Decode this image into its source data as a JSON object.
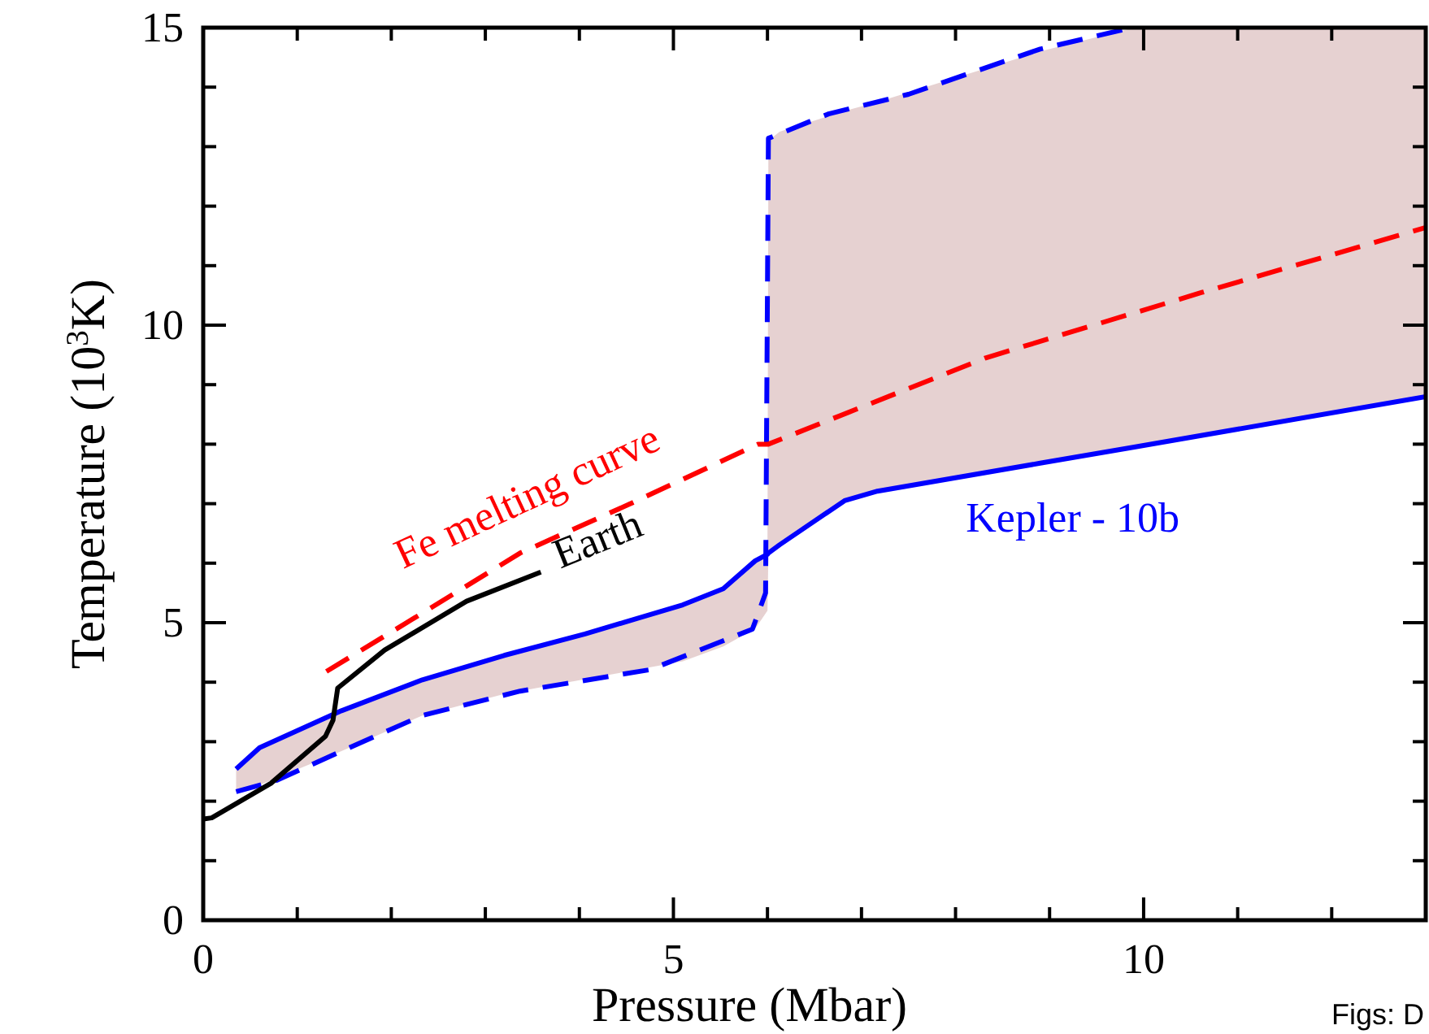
{
  "chart_data": {
    "type": "line",
    "xlabel": "Pressure (Mbar)",
    "ylabel": "Temperature (10$^{3}$K)",
    "xlim": [
      0,
      13
    ],
    "ylim": [
      0,
      15
    ],
    "xticks": [
      0,
      {
        "value": 1,
        "label": null
      },
      {
        "value": 2,
        "label": null
      },
      {
        "value": 3,
        "label": null
      },
      {
        "value": 4,
        "label": null
      },
      5,
      {
        "value": 6,
        "label": null
      },
      {
        "value": 7,
        "label": null
      },
      {
        "value": 8,
        "label": null
      },
      {
        "value": 9,
        "label": null
      },
      10,
      {
        "value": 11,
        "label": null
      },
      {
        "value": 12,
        "label": null
      }
    ],
    "yticks": [
      0,
      {
        "value": 1,
        "label": null
      },
      {
        "value": 2,
        "label": null
      },
      {
        "value": 3,
        "label": null
      },
      {
        "value": 4,
        "label": null
      },
      5,
      {
        "value": 6,
        "label": null
      },
      {
        "value": 7,
        "label": null
      },
      {
        "value": 8,
        "label": null
      },
      {
        "value": 9,
        "label": null
      },
      10,
      {
        "value": 11,
        "label": null
      },
      {
        "value": 12,
        "label": null
      },
      {
        "value": 13,
        "label": null
      },
      {
        "value": 14,
        "label": null
      },
      15
    ],
    "grid": false,
    "legend": false,
    "marker": "none",
    "series": [
      {
        "name": "Kepler - 10b",
        "color": "#0000ff",
        "line_style": "solid",
        "x": [
          0.35,
          0.6,
          1.47,
          2.33,
          3.2,
          4.06,
          5.1,
          5.53,
          5.87,
          6.0,
          6.01,
          6.13,
          6.82,
          7.17,
          8.9,
          9.9,
          13
        ],
        "values": [
          2.54,
          2.9,
          3.52,
          4.04,
          4.45,
          4.81,
          5.3,
          5.57,
          6.04,
          6.15,
          6.17,
          6.31,
          7.05,
          7.21,
          7.68,
          7.95,
          8.8
        ],
        "lower": [
          2.16,
          2.27,
          2.84,
          3.44,
          3.8,
          4.05,
          4.35,
          4.6,
          4.9,
          5.2,
          6.17,
          6.31,
          7.05,
          7.21,
          7.68,
          7.95,
          8.8
        ],
        "upper": [
          2.54,
          2.9,
          3.52,
          4.04,
          4.45,
          4.81,
          5.3,
          5.57,
          6.04,
          6.15,
          13.1,
          13.25,
          13.6,
          13.75,
          14.6,
          15,
          15
        ]
      },
      {
        "color": "#0000ff",
        "line_style": "dashed",
        "x": [
          0.35,
          0.78,
          1.47,
          2.33,
          3.37,
          4.75,
          5.84,
          5.98,
          6.01,
          6.65,
          7.5,
          8.9,
          9.88
        ],
        "values": [
          2.16,
          2.35,
          2.84,
          3.44,
          3.85,
          4.21,
          4.89,
          5.5,
          13.14,
          13.55,
          13.88,
          14.64,
          15.0
        ]
      },
      {
        "name": "Fe melting curve",
        "color": "#ff0000",
        "line_style": "dashed",
        "x": [
          1.31,
          2.33,
          3.37,
          4.53,
          5.9,
          6.01,
          8.32,
          10.62,
          13
        ],
        "values": [
          4.18,
          5.16,
          6.17,
          6.99,
          8.0,
          8.0,
          9.45,
          10.55,
          11.64
        ]
      },
      {
        "name": "Earth",
        "color": "#000000",
        "line_style": "solid",
        "x": [
          0.0,
          0.09,
          0.72,
          1.3,
          1.38,
          1.43,
          1.93,
          2.8,
          3.59
        ],
        "values": [
          1.7,
          1.72,
          2.3,
          3.09,
          3.36,
          3.9,
          4.54,
          5.36,
          5.85
        ]
      }
    ],
    "annotations": [
      "Figs: D"
    ]
  }
}
